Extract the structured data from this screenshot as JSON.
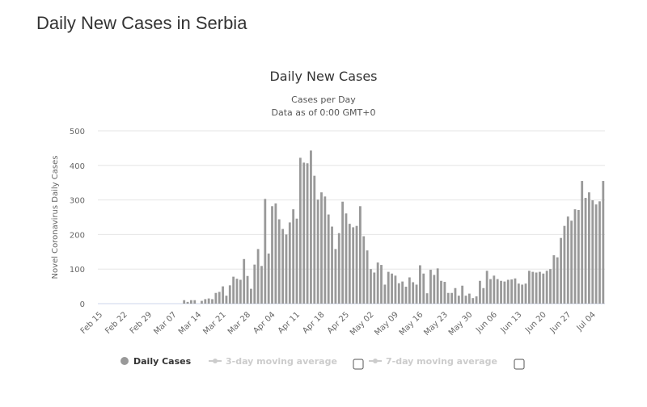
{
  "page": {
    "title": "Daily New Cases in Serbia"
  },
  "chart_data": {
    "type": "bar",
    "title": "Daily New Cases",
    "subtitle": [
      "Cases per Day",
      "Data as of 0:00 GMT+0"
    ],
    "ylabel": "Novel Coronavirus Daily Cases",
    "xlabel": "",
    "ylim": [
      0,
      500
    ],
    "yticks": [
      0,
      100,
      200,
      300,
      400,
      500
    ],
    "xticks": [
      "Feb 15",
      "Feb 22",
      "Feb 29",
      "Mar 07",
      "Mar 14",
      "Mar 21",
      "Mar 28",
      "Apr 04",
      "Apr 11",
      "Apr 18",
      "Apr 25",
      "May 02",
      "May 09",
      "May 16",
      "May 23",
      "May 30",
      "Jun 06",
      "Jun 13",
      "Jun 20",
      "Jun 27",
      "Jul 04"
    ],
    "grid": true,
    "bar_color": "#999999",
    "legend": {
      "placement": "bottom",
      "items": [
        {
          "label": "Daily Cases",
          "active": true,
          "color": "#999999"
        },
        {
          "label": "3-day moving average",
          "active": false,
          "color": "#cccccc"
        },
        {
          "label": "7-day moving average",
          "active": false,
          "color": "#cccccc"
        }
      ]
    },
    "x": [
      "Feb 15",
      "Feb 16",
      "Feb 17",
      "Feb 18",
      "Feb 19",
      "Feb 20",
      "Feb 21",
      "Feb 22",
      "Feb 23",
      "Feb 24",
      "Feb 25",
      "Feb 26",
      "Feb 27",
      "Feb 28",
      "Feb 29",
      "Mar 01",
      "Mar 02",
      "Mar 03",
      "Mar 04",
      "Mar 05",
      "Mar 06",
      "Mar 07",
      "Mar 08",
      "Mar 09",
      "Mar 10",
      "Mar 11",
      "Mar 12",
      "Mar 13",
      "Mar 14",
      "Mar 15",
      "Mar 16",
      "Mar 17",
      "Mar 18",
      "Mar 19",
      "Mar 20",
      "Mar 21",
      "Mar 22",
      "Mar 23",
      "Mar 24",
      "Mar 25",
      "Mar 26",
      "Mar 27",
      "Mar 28",
      "Mar 29",
      "Mar 30",
      "Mar 31",
      "Apr 01",
      "Apr 02",
      "Apr 03",
      "Apr 04",
      "Apr 05",
      "Apr 06",
      "Apr 07",
      "Apr 08",
      "Apr 09",
      "Apr 10",
      "Apr 11",
      "Apr 12",
      "Apr 13",
      "Apr 14",
      "Apr 15",
      "Apr 16",
      "Apr 17",
      "Apr 18",
      "Apr 19",
      "Apr 20",
      "Apr 21",
      "Apr 22",
      "Apr 23",
      "Apr 24",
      "Apr 25",
      "Apr 26",
      "Apr 27",
      "Apr 28",
      "Apr 29",
      "Apr 30",
      "May 01",
      "May 02",
      "May 03",
      "May 04",
      "May 05",
      "May 06",
      "May 07",
      "May 08",
      "May 09",
      "May 10",
      "May 11",
      "May 12",
      "May 13",
      "May 14",
      "May 15",
      "May 16",
      "May 17",
      "May 18",
      "May 19",
      "May 20",
      "May 21",
      "May 22",
      "May 23",
      "May 24",
      "May 25",
      "May 26",
      "May 27",
      "May 28",
      "May 29",
      "May 30",
      "May 31",
      "Jun 01",
      "Jun 02",
      "Jun 03",
      "Jun 04",
      "Jun 05",
      "Jun 06",
      "Jun 07",
      "Jun 08",
      "Jun 09",
      "Jun 10",
      "Jun 11",
      "Jun 12",
      "Jun 13",
      "Jun 14",
      "Jun 15",
      "Jun 16",
      "Jun 17",
      "Jun 18",
      "Jun 19",
      "Jun 20",
      "Jun 21",
      "Jun 22",
      "Jun 23",
      "Jun 24",
      "Jun 25",
      "Jun 26",
      "Jun 27",
      "Jun 28",
      "Jun 29",
      "Jun 30",
      "Jul 01",
      "Jul 02",
      "Jul 03",
      "Jul 04",
      "Jul 05",
      "Jul 06",
      "Jul 07"
    ],
    "values": [
      0,
      0,
      0,
      0,
      0,
      0,
      0,
      0,
      0,
      0,
      0,
      0,
      0,
      0,
      0,
      0,
      0,
      0,
      0,
      0,
      0,
      0,
      0,
      0,
      10,
      5,
      10,
      10,
      0,
      8,
      13,
      15,
      13,
      31,
      34,
      50,
      23,
      53,
      78,
      72,
      69,
      129,
      80,
      43,
      113,
      158,
      109,
      303,
      145,
      282,
      290,
      244,
      216,
      200,
      235,
      273,
      246,
      422,
      408,
      406,
      443,
      370,
      301,
      322,
      310,
      258,
      223,
      158,
      204,
      295,
      261,
      231,
      221,
      225,
      282,
      195,
      154,
      100,
      90,
      119,
      112,
      55,
      92,
      87,
      81,
      59,
      64,
      49,
      76,
      62,
      55,
      111,
      87,
      30,
      98,
      83,
      102,
      66,
      63,
      31,
      31,
      45,
      23,
      52,
      23,
      29,
      16,
      21,
      66,
      45,
      95,
      71,
      81,
      71,
      66,
      64,
      69,
      70,
      73,
      58,
      55,
      58,
      95,
      92,
      90,
      92,
      87,
      95,
      100,
      140,
      134,
      190,
      225,
      252,
      240,
      273,
      271,
      355,
      306,
      322,
      299,
      287,
      296,
      355
    ]
  }
}
